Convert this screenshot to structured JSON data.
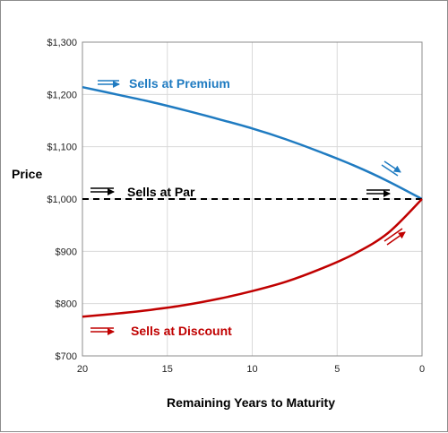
{
  "chart_data": {
    "type": "line",
    "title": "",
    "xlabel": "Remaining Years to Maturity",
    "ylabel": "Price",
    "x_reversed": true,
    "xlim": [
      20,
      0
    ],
    "ylim": [
      700,
      1300
    ],
    "x_ticks": [
      20,
      15,
      10,
      5,
      0
    ],
    "x_tick_labels": [
      "20",
      "15",
      "10",
      "5",
      "0"
    ],
    "y_ticks": [
      700,
      800,
      900,
      1000,
      1100,
      1200,
      1300
    ],
    "y_tick_labels": [
      "$700",
      "$800",
      "$900",
      "$1,000",
      "$1,100",
      "$1,200",
      "$1,300"
    ],
    "grid": true,
    "x": [
      20,
      18,
      16,
      14,
      12,
      10,
      8,
      6,
      4,
      2,
      0
    ],
    "series": [
      {
        "name": "Sells at Premium",
        "color": "#1f7bc1",
        "style": "solid",
        "values": [
          1214,
          1200,
          1186,
          1170,
          1153,
          1135,
          1114,
          1090,
          1064,
          1034,
          1000
        ]
      },
      {
        "name": "Sells at Par",
        "color": "#000000",
        "style": "dashed",
        "values": [
          1000,
          1000,
          1000,
          1000,
          1000,
          1000,
          1000,
          1000,
          1000,
          1000,
          1000
        ]
      },
      {
        "name": "Sells at Discount",
        "color": "#c00000",
        "style": "solid",
        "values": [
          775,
          781,
          788,
          797,
          809,
          824,
          842,
          866,
          895,
          935,
          1000
        ]
      }
    ],
    "annotations": [
      {
        "text": "Sells at Premium",
        "color": "#1f7bc1"
      },
      {
        "text": "Sells at Par",
        "color": "#000000"
      },
      {
        "text": "Sells at Discount",
        "color": "#c00000"
      }
    ]
  }
}
